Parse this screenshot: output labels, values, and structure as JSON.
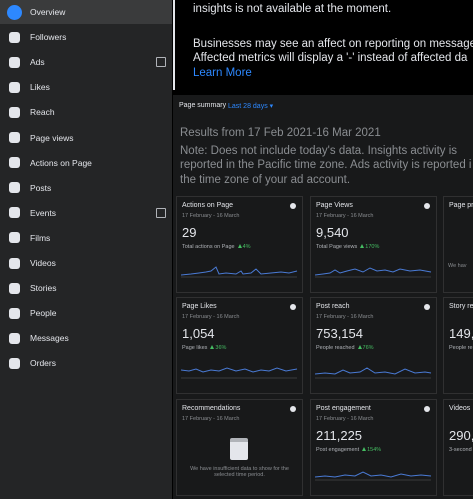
{
  "sidebar": {
    "items": [
      {
        "label": "Overview"
      },
      {
        "label": "Followers"
      },
      {
        "label": "Ads"
      },
      {
        "label": "Likes"
      },
      {
        "label": "Reach"
      },
      {
        "label": "Page views"
      },
      {
        "label": "Actions on Page"
      },
      {
        "label": "Posts"
      },
      {
        "label": "Events"
      },
      {
        "label": "Films"
      },
      {
        "label": "Videos"
      },
      {
        "label": "Stories"
      },
      {
        "label": "People"
      },
      {
        "label": "Messages"
      },
      {
        "label": "Orders"
      }
    ]
  },
  "banner": {
    "lines": [
      "insights is not available at the moment.",
      "Businesses may see an affect on reporting on message",
      "Affected metrics will display a '-' instead of affected da"
    ],
    "link": "Learn More"
  },
  "summary": {
    "title": "Page summary",
    "range": "Last 28 days",
    "results": "Results from 17 Feb 2021-16 Mar 2021",
    "note_lines": [
      "Note: Does not include today's data. Insights activity is",
      "reported in the Pacific time zone. Ads activity is reported i",
      "the time zone of your ad account."
    ]
  },
  "cards": [
    {
      "title": "Actions on Page",
      "date": "17 February - 16 March",
      "value": "29",
      "metric": "Total actions on Page",
      "change": "4%"
    },
    {
      "title": "Page Views",
      "date": "17 February - 16 March",
      "value": "9,540",
      "metric": "Total Page views",
      "change": "170%"
    },
    {
      "title": "Page pre",
      "message": "We hav"
    },
    {
      "title": "Page Likes",
      "date": "17 February - 16 March",
      "value": "1,054",
      "metric": "Page likes",
      "change": "36%"
    },
    {
      "title": "Post reach",
      "date": "17 February - 16 March",
      "value": "753,154",
      "metric": "People reached",
      "change": "76%"
    },
    {
      "title": "Story re",
      "value": "149,",
      "metric": "People re"
    },
    {
      "title": "Recommendations",
      "date": "17 February - 16 March",
      "message": "We have insufficient data to show for the selected time period."
    },
    {
      "title": "Post engagement",
      "date": "17 February - 16 March",
      "value": "211,225",
      "metric": "Post engagement",
      "change": "154%"
    },
    {
      "title": "Videos",
      "value": "290,",
      "metric": "3-second"
    }
  ]
}
